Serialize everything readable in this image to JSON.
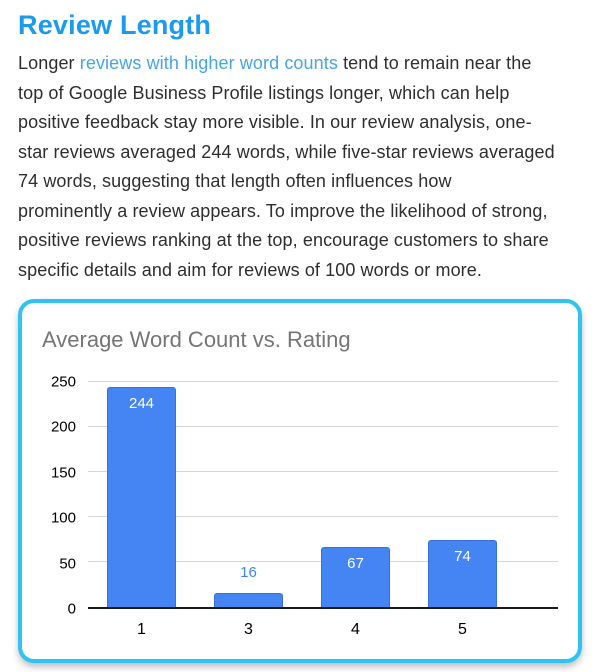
{
  "header": {
    "title": "Review Length"
  },
  "paragraph": {
    "pre": "Longer ",
    "link_text": "reviews with higher word counts",
    "post": " tend to remain near the\ntop of Google Business Profile listings longer, which can help\npositive feedback stay more visible. In our review analysis, one-\nstar reviews averaged 244 words, while five-star reviews averaged\n74 words, suggesting that length often influences how\nprominently a review appears. To improve the likelihood of strong,\npositive reviews ranking at the top, encourage customers to share\nspecific details and aim for reviews of 100 words or more."
  },
  "colors": {
    "heading_blue": "#1b9af0",
    "link_blue": "#45a5e5",
    "card_border_cyan": "#2fc3f2",
    "title_gray": "#757575",
    "gridline_gray": "#d6d6d6",
    "axis_black": "#1a1a1a"
  },
  "chart_data": {
    "type": "bar",
    "title": "Average Word Count vs. Rating",
    "xlabel": "",
    "ylabel": "",
    "categories": [
      "1",
      "3",
      "4",
      "5"
    ],
    "values": [
      244,
      16,
      67,
      74
    ],
    "ylim": [
      0,
      250
    ],
    "yticks": [
      0,
      50,
      100,
      150,
      200,
      250
    ],
    "grid": true,
    "legend_position": "none",
    "bar_color": "#4484f3",
    "bar_border_color": "#3a71d9",
    "label_inside_color": "#ffffff",
    "label_outside_color": "#4285f4"
  }
}
